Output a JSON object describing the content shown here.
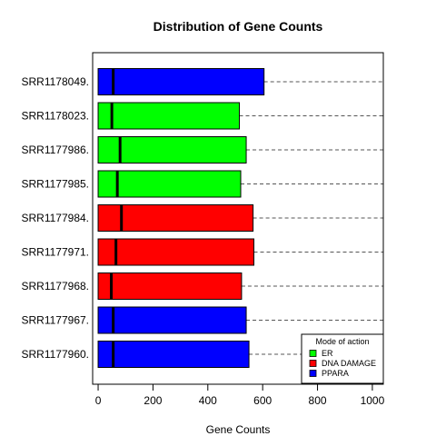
{
  "chart_data": {
    "type": "boxplot",
    "title": "Distribution of Gene Counts",
    "xlabel": "Gene Counts",
    "ylabel": "",
    "xlim": [
      -20,
      1040
    ],
    "x_ticks": [
      0,
      200,
      400,
      600,
      800,
      1000
    ],
    "grid": "dashed horizontal line per sample",
    "samples": [
      {
        "name": "SRR1178049.",
        "group": "PPARA",
        "q1": 0,
        "median": 55,
        "q3": 605
      },
      {
        "name": "SRR1178023.",
        "group": "ER",
        "q1": 0,
        "median": 50,
        "q3": 515
      },
      {
        "name": "SRR1177986.",
        "group": "ER",
        "q1": 0,
        "median": 80,
        "q3": 540
      },
      {
        "name": "SRR1177985.",
        "group": "ER",
        "q1": 0,
        "median": 70,
        "q3": 520
      },
      {
        "name": "SRR1177984.",
        "group": "DNA DAMAGE",
        "q1": 0,
        "median": 85,
        "q3": 565
      },
      {
        "name": "SRR1177971.",
        "group": "DNA DAMAGE",
        "q1": 0,
        "median": 65,
        "q3": 568
      },
      {
        "name": "SRR1177968.",
        "group": "DNA DAMAGE",
        "q1": 0,
        "median": 48,
        "q3": 523
      },
      {
        "name": "SRR1177967.",
        "group": "PPARA",
        "q1": 0,
        "median": 55,
        "q3": 540
      },
      {
        "name": "SRR1177960.",
        "group": "PPARA",
        "q1": 0,
        "median": 55,
        "q3": 550
      }
    ],
    "legend": {
      "title": "Mode of action",
      "position": "bottom-right",
      "entries": [
        {
          "label": "ER",
          "color": "#00ff00"
        },
        {
          "label": "DNA DAMAGE",
          "color": "#ff0000"
        },
        {
          "label": "PPARA",
          "color": "#0000ff"
        }
      ]
    }
  }
}
